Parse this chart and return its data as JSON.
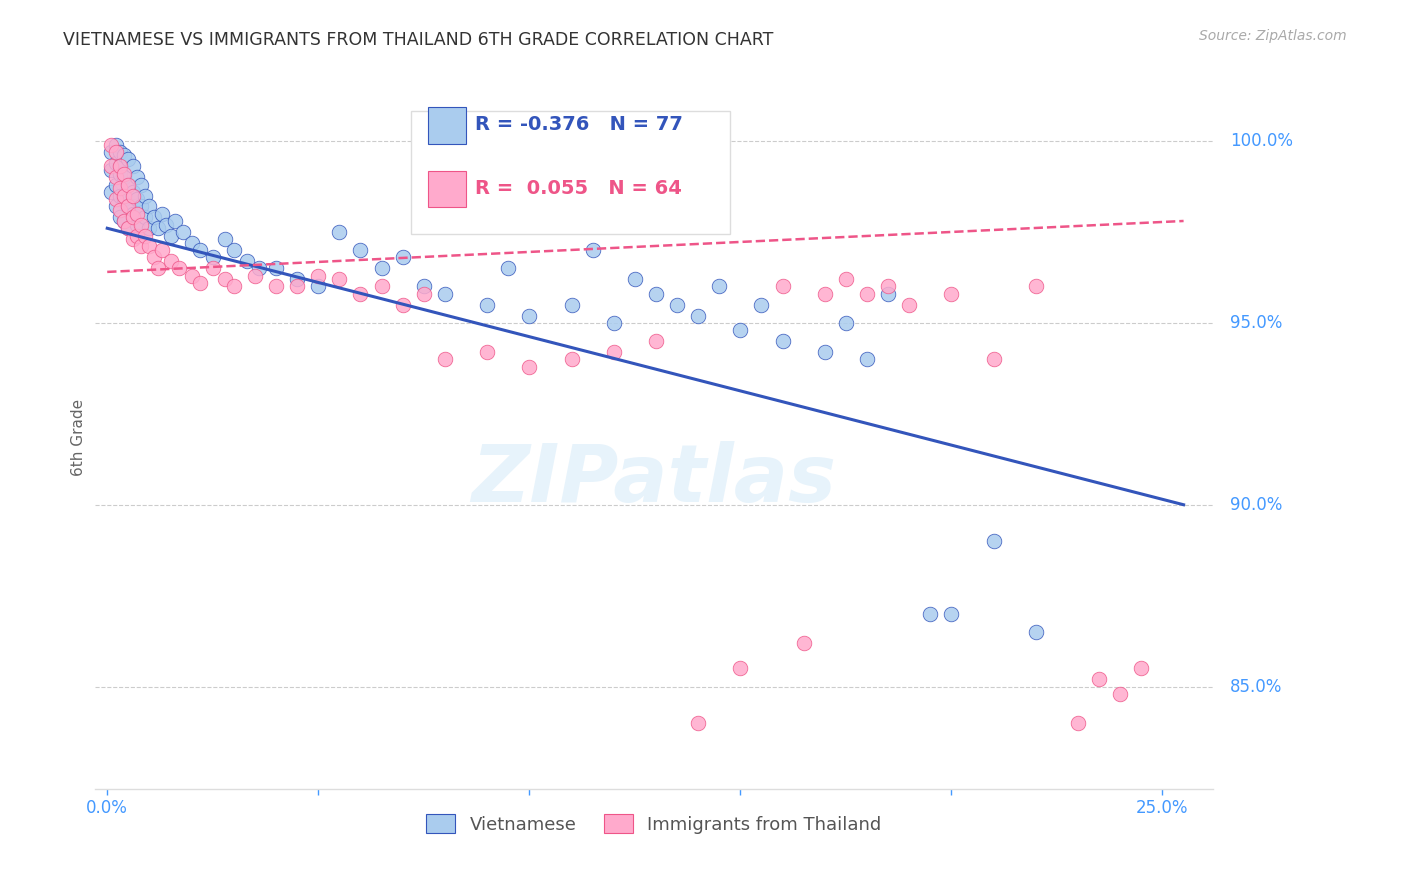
{
  "title": "VIETNAMESE VS IMMIGRANTS FROM THAILAND 6TH GRADE CORRELATION CHART",
  "source": "Source: ZipAtlas.com",
  "ylabel": "6th Grade",
  "y_ticks": [
    0.85,
    0.9,
    0.95,
    1.0
  ],
  "y_tick_labels": [
    "85.0%",
    "90.0%",
    "95.0%",
    "100.0%"
  ],
  "ylim": [
    0.822,
    1.015
  ],
  "xlim": [
    -0.003,
    0.262
  ],
  "blue_R": -0.376,
  "blue_N": 77,
  "pink_R": 0.055,
  "pink_N": 64,
  "blue_color": "#AACCEE",
  "pink_color": "#FFAACC",
  "trend_blue": "#3355BB",
  "trend_pink": "#EE5588",
  "legend_label_blue": "Vietnamese",
  "legend_label_pink": "Immigrants from Thailand",
  "watermark": "ZIPatlas",
  "background_color": "#ffffff",
  "grid_color": "#cccccc",
  "title_color": "#333333",
  "axis_color": "#4499FF",
  "blue_scatter_x": [
    0.001,
    0.001,
    0.001,
    0.002,
    0.002,
    0.002,
    0.002,
    0.003,
    0.003,
    0.003,
    0.003,
    0.003,
    0.004,
    0.004,
    0.004,
    0.004,
    0.005,
    0.005,
    0.005,
    0.005,
    0.006,
    0.006,
    0.006,
    0.007,
    0.007,
    0.007,
    0.008,
    0.008,
    0.009,
    0.009,
    0.01,
    0.01,
    0.011,
    0.012,
    0.013,
    0.014,
    0.015,
    0.016,
    0.018,
    0.02,
    0.022,
    0.025,
    0.028,
    0.03,
    0.033,
    0.036,
    0.04,
    0.045,
    0.05,
    0.055,
    0.06,
    0.065,
    0.07,
    0.075,
    0.08,
    0.09,
    0.095,
    0.1,
    0.11,
    0.115,
    0.12,
    0.125,
    0.13,
    0.135,
    0.14,
    0.145,
    0.15,
    0.155,
    0.16,
    0.17,
    0.175,
    0.18,
    0.185,
    0.195,
    0.2,
    0.21,
    0.22
  ],
  "blue_scatter_y": [
    0.997,
    0.992,
    0.986,
    0.999,
    0.994,
    0.988,
    0.982,
    0.997,
    0.991,
    0.985,
    0.979,
    0.993,
    0.996,
    0.99,
    0.984,
    0.978,
    0.995,
    0.988,
    0.982,
    0.976,
    0.993,
    0.986,
    0.98,
    0.99,
    0.984,
    0.977,
    0.988,
    0.982,
    0.985,
    0.979,
    0.982,
    0.976,
    0.979,
    0.976,
    0.98,
    0.977,
    0.974,
    0.978,
    0.975,
    0.972,
    0.97,
    0.968,
    0.973,
    0.97,
    0.967,
    0.965,
    0.965,
    0.962,
    0.96,
    0.975,
    0.97,
    0.965,
    0.968,
    0.96,
    0.958,
    0.955,
    0.965,
    0.952,
    0.955,
    0.97,
    0.95,
    0.962,
    0.958,
    0.955,
    0.952,
    0.96,
    0.948,
    0.955,
    0.945,
    0.942,
    0.95,
    0.94,
    0.958,
    0.87,
    0.87,
    0.89,
    0.865
  ],
  "pink_scatter_x": [
    0.001,
    0.001,
    0.002,
    0.002,
    0.002,
    0.003,
    0.003,
    0.003,
    0.004,
    0.004,
    0.004,
    0.005,
    0.005,
    0.005,
    0.006,
    0.006,
    0.006,
    0.007,
    0.007,
    0.008,
    0.008,
    0.009,
    0.01,
    0.011,
    0.012,
    0.013,
    0.015,
    0.017,
    0.02,
    0.022,
    0.025,
    0.028,
    0.03,
    0.035,
    0.04,
    0.045,
    0.05,
    0.055,
    0.06,
    0.065,
    0.07,
    0.075,
    0.08,
    0.09,
    0.1,
    0.11,
    0.12,
    0.13,
    0.14,
    0.15,
    0.16,
    0.165,
    0.17,
    0.175,
    0.18,
    0.185,
    0.19,
    0.2,
    0.21,
    0.22,
    0.23,
    0.235,
    0.24,
    0.245
  ],
  "pink_scatter_y": [
    0.999,
    0.993,
    0.997,
    0.99,
    0.984,
    0.993,
    0.987,
    0.981,
    0.991,
    0.985,
    0.978,
    0.988,
    0.982,
    0.976,
    0.985,
    0.979,
    0.973,
    0.98,
    0.974,
    0.977,
    0.971,
    0.974,
    0.971,
    0.968,
    0.965,
    0.97,
    0.967,
    0.965,
    0.963,
    0.961,
    0.965,
    0.962,
    0.96,
    0.963,
    0.96,
    0.96,
    0.963,
    0.962,
    0.958,
    0.96,
    0.955,
    0.958,
    0.94,
    0.942,
    0.938,
    0.94,
    0.942,
    0.945,
    0.84,
    0.855,
    0.96,
    0.862,
    0.958,
    0.962,
    0.958,
    0.96,
    0.955,
    0.958,
    0.94,
    0.96,
    0.84,
    0.852,
    0.848,
    0.855
  ],
  "blue_trend_x": [
    0.0,
    0.255
  ],
  "blue_trend_y": [
    0.976,
    0.9
  ],
  "pink_trend_x": [
    0.0,
    0.255
  ],
  "pink_trend_y": [
    0.964,
    0.978
  ]
}
